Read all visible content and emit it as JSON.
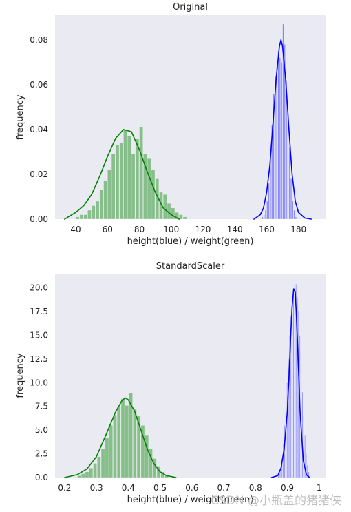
{
  "watermark": "CSDN @小瓶盖的猪猪侠",
  "chart_data": [
    {
      "type": "histogram+kde",
      "title": "Original",
      "xlabel": "height(blue) / weight(green)",
      "ylabel": "frequency",
      "xlim": [
        27,
        197
      ],
      "ylim": [
        0,
        0.091
      ],
      "xticks": [
        40,
        60,
        80,
        100,
        120,
        140,
        160,
        180
      ],
      "yticks": [
        0.0,
        0.02,
        0.04,
        0.06,
        0.08
      ],
      "ytick_labels": [
        "0.00",
        "0.02",
        "0.04",
        "0.06",
        "0.08"
      ],
      "grid": false,
      "background": "#eaeaf2",
      "series": [
        {
          "color": "#008000",
          "bins": {
            "start": 40,
            "width": 2.5,
            "heights": [
              0.001,
              0.002,
              0.002,
              0.004,
              0.006,
              0.008,
              0.013,
              0.017,
              0.022,
              0.029,
              0.033,
              0.034,
              0.04,
              0.037,
              0.029,
              0.036,
              0.041,
              0.029,
              0.027,
              0.022,
              0.018,
              0.012,
              0.011,
              0.007,
              0.005,
              0.003,
              0.002,
              0.001
            ]
          },
          "kde": {
            "x": [
              33,
              40,
              45,
              50,
              55,
              60,
              65,
              70,
              75,
              80,
              85,
              90,
              95,
              100,
              105
            ],
            "y": [
              0.0,
              0.003,
              0.006,
              0.011,
              0.019,
              0.028,
              0.036,
              0.04,
              0.039,
              0.031,
              0.021,
              0.012,
              0.005,
              0.002,
              0.0
            ]
          }
        },
        {
          "color": "#0000ff",
          "bins": {
            "start": 157,
            "width": 1,
            "heights": [
              0.001,
              0.002,
              0.004,
              0.008,
              0.016,
              0.028,
              0.042,
              0.056,
              0.064,
              0.068,
              0.075,
              0.072,
              0.07,
              0.087,
              0.078,
              0.062,
              0.048,
              0.032,
              0.018,
              0.008,
              0.004,
              0.001
            ]
          },
          "kde": {
            "x": [
              152,
              156,
              158,
              160,
              162,
              164,
              166,
              168,
              169,
              170,
              172,
              174,
              176,
              178,
              180,
              184,
              188
            ],
            "y": [
              0.0,
              0.002,
              0.005,
              0.012,
              0.024,
              0.043,
              0.063,
              0.077,
              0.08,
              0.077,
              0.062,
              0.04,
              0.02,
              0.008,
              0.003,
              0.0005,
              0.0
            ]
          }
        }
      ]
    },
    {
      "type": "histogram+kde",
      "title": "StandardScaler",
      "xlabel": "height(blue) / weight(green)",
      "ylabel": "frequency",
      "xlim": [
        0.17,
        1.02
      ],
      "ylim": [
        0,
        21.5
      ],
      "xticks": [
        0.2,
        0.3,
        0.4,
        0.5,
        0.6,
        0.7,
        0.8,
        0.9,
        1.0
      ],
      "yticks": [
        0.0,
        2.5,
        5.0,
        7.5,
        10.0,
        12.5,
        15.0,
        17.5,
        20.0
      ],
      "ytick_labels": [
        "0.0",
        "2.5",
        "5.0",
        "7.5",
        "10.0",
        "12.5",
        "15.0",
        "17.5",
        "20.0"
      ],
      "grid": false,
      "background": "#eaeaf2",
      "series": [
        {
          "color": "#008000",
          "bins": {
            "start": 0.24,
            "width": 0.0125,
            "heights": [
              0.2,
              0.4,
              0.6,
              1.0,
              1.5,
              2.2,
              3.0,
              4.2,
              5.5,
              6.6,
              7.5,
              8.3,
              7.6,
              8.9,
              7.2,
              6.5,
              5.5,
              4.5,
              3.0,
              2.0,
              1.2,
              0.6,
              0.3
            ]
          },
          "kde": {
            "x": [
              0.2,
              0.24,
              0.27,
              0.3,
              0.33,
              0.36,
              0.38,
              0.39,
              0.4,
              0.42,
              0.44,
              0.46,
              0.48,
              0.5,
              0.52,
              0.55
            ],
            "y": [
              0.0,
              0.3,
              0.9,
              2.2,
              4.5,
              6.9,
              8.1,
              8.4,
              8.2,
              7.0,
              5.0,
              3.0,
              1.5,
              0.6,
              0.2,
              0.0
            ]
          }
        },
        {
          "color": "#0000ff",
          "bins": {
            "start": 0.87,
            "width": 0.004,
            "heights": [
              0.2,
              0.5,
              1.0,
              2.0,
              3.5,
              5.5,
              7.5,
              10.0,
              12.5,
              15.0,
              17.0,
              18.5,
              19.5,
              20.3,
              20.4,
              19.0,
              17.5,
              15.0,
              12.0,
              9.0,
              6.5,
              4.5,
              2.5,
              1.3,
              0.6,
              0.2
            ]
          },
          "kde": {
            "x": [
              0.85,
              0.87,
              0.88,
              0.89,
              0.9,
              0.905,
              0.91,
              0.915,
              0.92,
              0.925,
              0.93,
              0.935,
              0.94,
              0.95,
              0.96,
              0.97
            ],
            "y": [
              0.0,
              0.2,
              1.0,
              3.0,
              7.0,
              10.5,
              14.5,
              18.0,
              19.9,
              19.5,
              16.0,
              11.5,
              7.0,
              1.8,
              0.3,
              0.0
            ]
          }
        }
      ]
    }
  ]
}
